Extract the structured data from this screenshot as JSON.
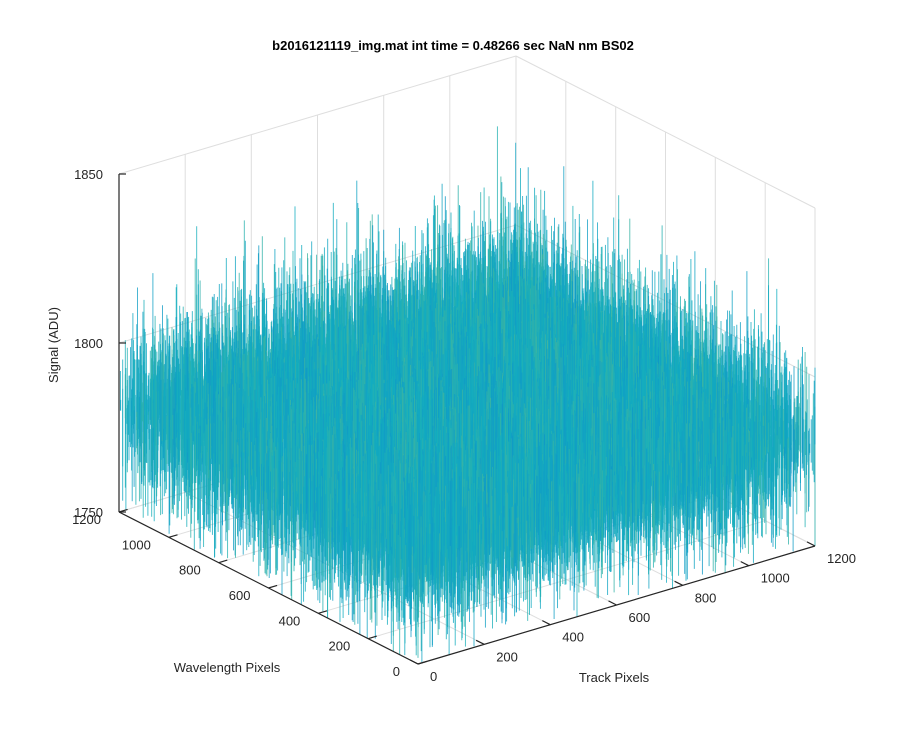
{
  "chart_data": {
    "type": "surface",
    "title": "b2016121119_img.mat int time = 0.48266 sec  NaN nm BS02",
    "xlabel": "Track Pixels",
    "ylabel": "Wavelength Pixels",
    "zlabel": "Signal (ADU)",
    "xlim": [
      0,
      1200
    ],
    "ylim": [
      0,
      1200
    ],
    "zlim": [
      1750,
      1850
    ],
    "x_ticks": [
      "0",
      "200",
      "400",
      "600",
      "800",
      "1000",
      "1200"
    ],
    "y_ticks": [
      "0",
      "200",
      "400",
      "600",
      "800",
      "1000",
      "1200"
    ],
    "z_ticks": [
      "1750",
      "1800",
      "1850"
    ],
    "grid": true,
    "colormap": "parula",
    "surface": {
      "mean_level": 1781,
      "spread": 10,
      "min_level": 1758,
      "max_level": 1845
    },
    "colors": {
      "low": "#0e72d6",
      "mid": "#13aebf",
      "high": "#c9cb3e"
    }
  }
}
